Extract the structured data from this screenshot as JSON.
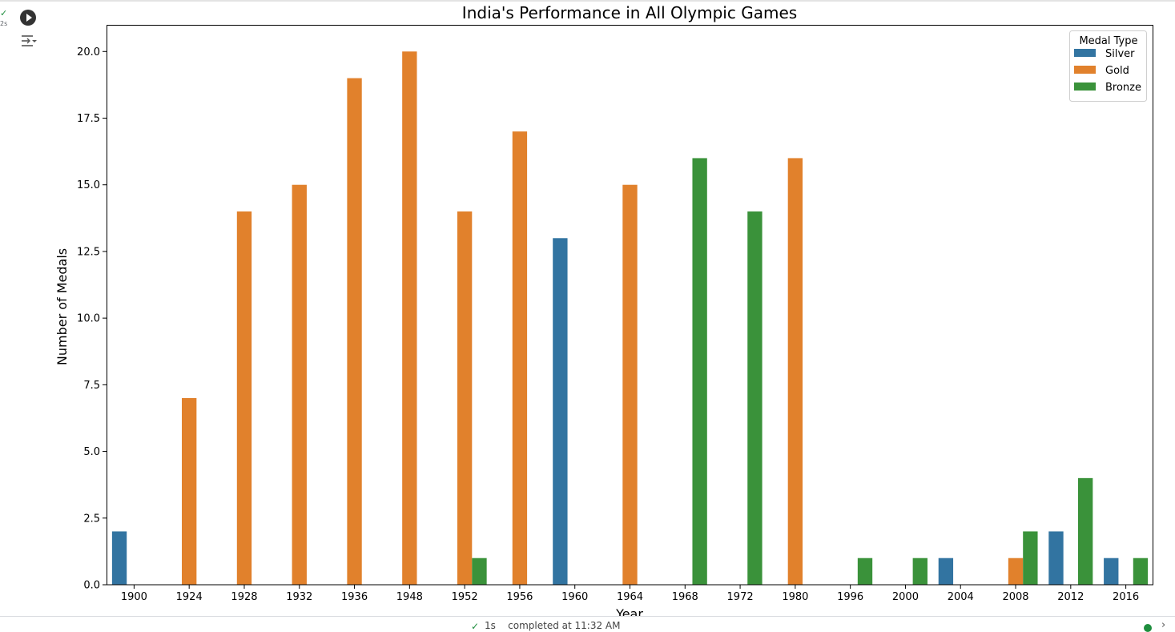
{
  "cell": {
    "status_check": "✓",
    "run_time": "2s",
    "run_icon": "play-circle-icon",
    "output_menu_icon": "output-options-icon"
  },
  "status_bar": {
    "check": "✓",
    "text": "1s    completed at 11:32 AM"
  },
  "chart_data": {
    "type": "bar",
    "title": "India's Performance in All Olympic Games",
    "xlabel": "Year",
    "ylabel": "Number of Medals",
    "ylim": [
      0,
      21
    ],
    "yticks": [
      "0.0",
      "2.5",
      "5.0",
      "7.5",
      "10.0",
      "12.5",
      "15.0",
      "17.5",
      "20.0"
    ],
    "categories": [
      "1900",
      "1924",
      "1928",
      "1932",
      "1936",
      "1948",
      "1952",
      "1956",
      "1960",
      "1964",
      "1968",
      "1972",
      "1980",
      "1996",
      "2000",
      "2004",
      "2008",
      "2012",
      "2016"
    ],
    "legend": {
      "title": "Medal Type",
      "position": "top-right"
    },
    "grid": false,
    "series": [
      {
        "name": "Silver",
        "color": "#3274a1",
        "values": [
          2,
          0,
          0,
          0,
          0,
          0,
          0,
          0,
          13,
          0,
          0,
          0,
          0,
          0,
          0,
          1,
          0,
          2,
          1
        ]
      },
      {
        "name": "Gold",
        "color": "#e1812c",
        "values": [
          0,
          7,
          14,
          15,
          19,
          20,
          14,
          17,
          0,
          15,
          0,
          0,
          16,
          0,
          0,
          0,
          1,
          0,
          0
        ]
      },
      {
        "name": "Bronze",
        "color": "#3a923a",
        "values": [
          0,
          0,
          0,
          0,
          0,
          0,
          1,
          0,
          0,
          0,
          16,
          14,
          0,
          1,
          1,
          0,
          2,
          4,
          1
        ]
      }
    ]
  }
}
